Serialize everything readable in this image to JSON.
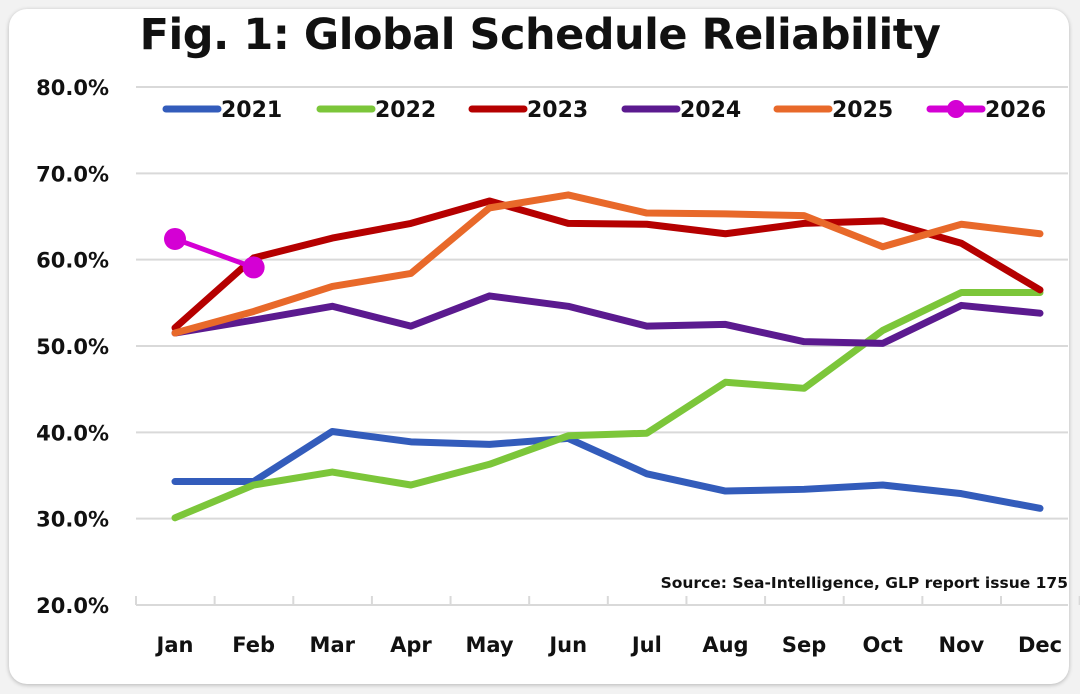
{
  "chart_data": {
    "type": "line",
    "title": "Fig. 1: Global Schedule Reliability",
    "xlabel": "",
    "ylabel": "",
    "categories": [
      "Jan",
      "Feb",
      "Mar",
      "Apr",
      "May",
      "Jun",
      "Jul",
      "Aug",
      "Sep",
      "Oct",
      "Nov",
      "Dec"
    ],
    "ylim": [
      20,
      80
    ],
    "yticks": [
      20,
      30,
      40,
      50,
      60,
      70,
      80
    ],
    "ytick_labels": [
      "20.0%",
      "30.0%",
      "40.0%",
      "50.0%",
      "60.0%",
      "70.0%",
      "80.0%"
    ],
    "grid": true,
    "legend_position": "top",
    "annotation": "Source: Sea-Intelligence, GLP report issue 175",
    "series": [
      {
        "name": "2021",
        "color": "#335cbb",
        "marker": false,
        "values": [
          34.3,
          34.3,
          40.1,
          38.9,
          38.6,
          39.3,
          35.2,
          33.2,
          33.4,
          33.9,
          32.9,
          31.2
        ]
      },
      {
        "name": "2022",
        "color": "#7cc63a",
        "marker": false,
        "values": [
          30.1,
          33.9,
          35.4,
          33.9,
          36.3,
          39.6,
          39.9,
          45.8,
          45.1,
          51.8,
          56.2,
          56.2
        ]
      },
      {
        "name": "2023",
        "color": "#b50000",
        "marker": false,
        "values": [
          52.1,
          60.2,
          62.5,
          64.2,
          66.8,
          64.2,
          64.1,
          63.0,
          64.2,
          64.5,
          61.9,
          56.5
        ]
      },
      {
        "name": "2024",
        "color": "#5b1a8f",
        "marker": false,
        "values": [
          51.5,
          53.0,
          54.6,
          52.3,
          55.8,
          54.6,
          52.3,
          52.5,
          50.5,
          50.3,
          54.7,
          53.8
        ]
      },
      {
        "name": "2025",
        "color": "#e8692a",
        "marker": false,
        "values": [
          51.5,
          54.0,
          56.9,
          58.4,
          66.0,
          67.5,
          65.4,
          65.3,
          65.1,
          61.5,
          64.1,
          63.0
        ]
      },
      {
        "name": "2026",
        "color": "#d400d4",
        "marker": true,
        "values": [
          62.4,
          59.1
        ]
      }
    ]
  }
}
